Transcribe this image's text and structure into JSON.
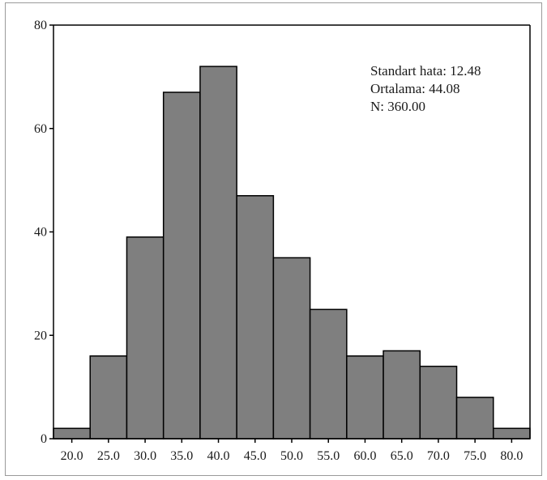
{
  "chart_data": {
    "type": "bar",
    "title": "",
    "xlabel": "",
    "ylabel": "",
    "categories": [
      "20.0",
      "25.0",
      "30.0",
      "35.0",
      "40.0",
      "45.0",
      "50.0",
      "55.0",
      "60.0",
      "65.0",
      "70.0",
      "75.0",
      "80.0"
    ],
    "values": [
      2,
      16,
      39,
      67,
      72,
      47,
      35,
      25,
      16,
      17,
      14,
      8,
      2
    ],
    "ylim": [
      0,
      80
    ],
    "yticks": [
      "0",
      "20",
      "40",
      "60",
      "80"
    ],
    "ytick_values": [
      0,
      20,
      40,
      60,
      80
    ],
    "grid": false,
    "bar_color": "#7f7f7f",
    "bar_edge_color": "#000000",
    "annotations": {
      "std": "Standart hata: 12.48",
      "mean": "Ortalama: 44.08",
      "n": "N: 360.00"
    }
  }
}
